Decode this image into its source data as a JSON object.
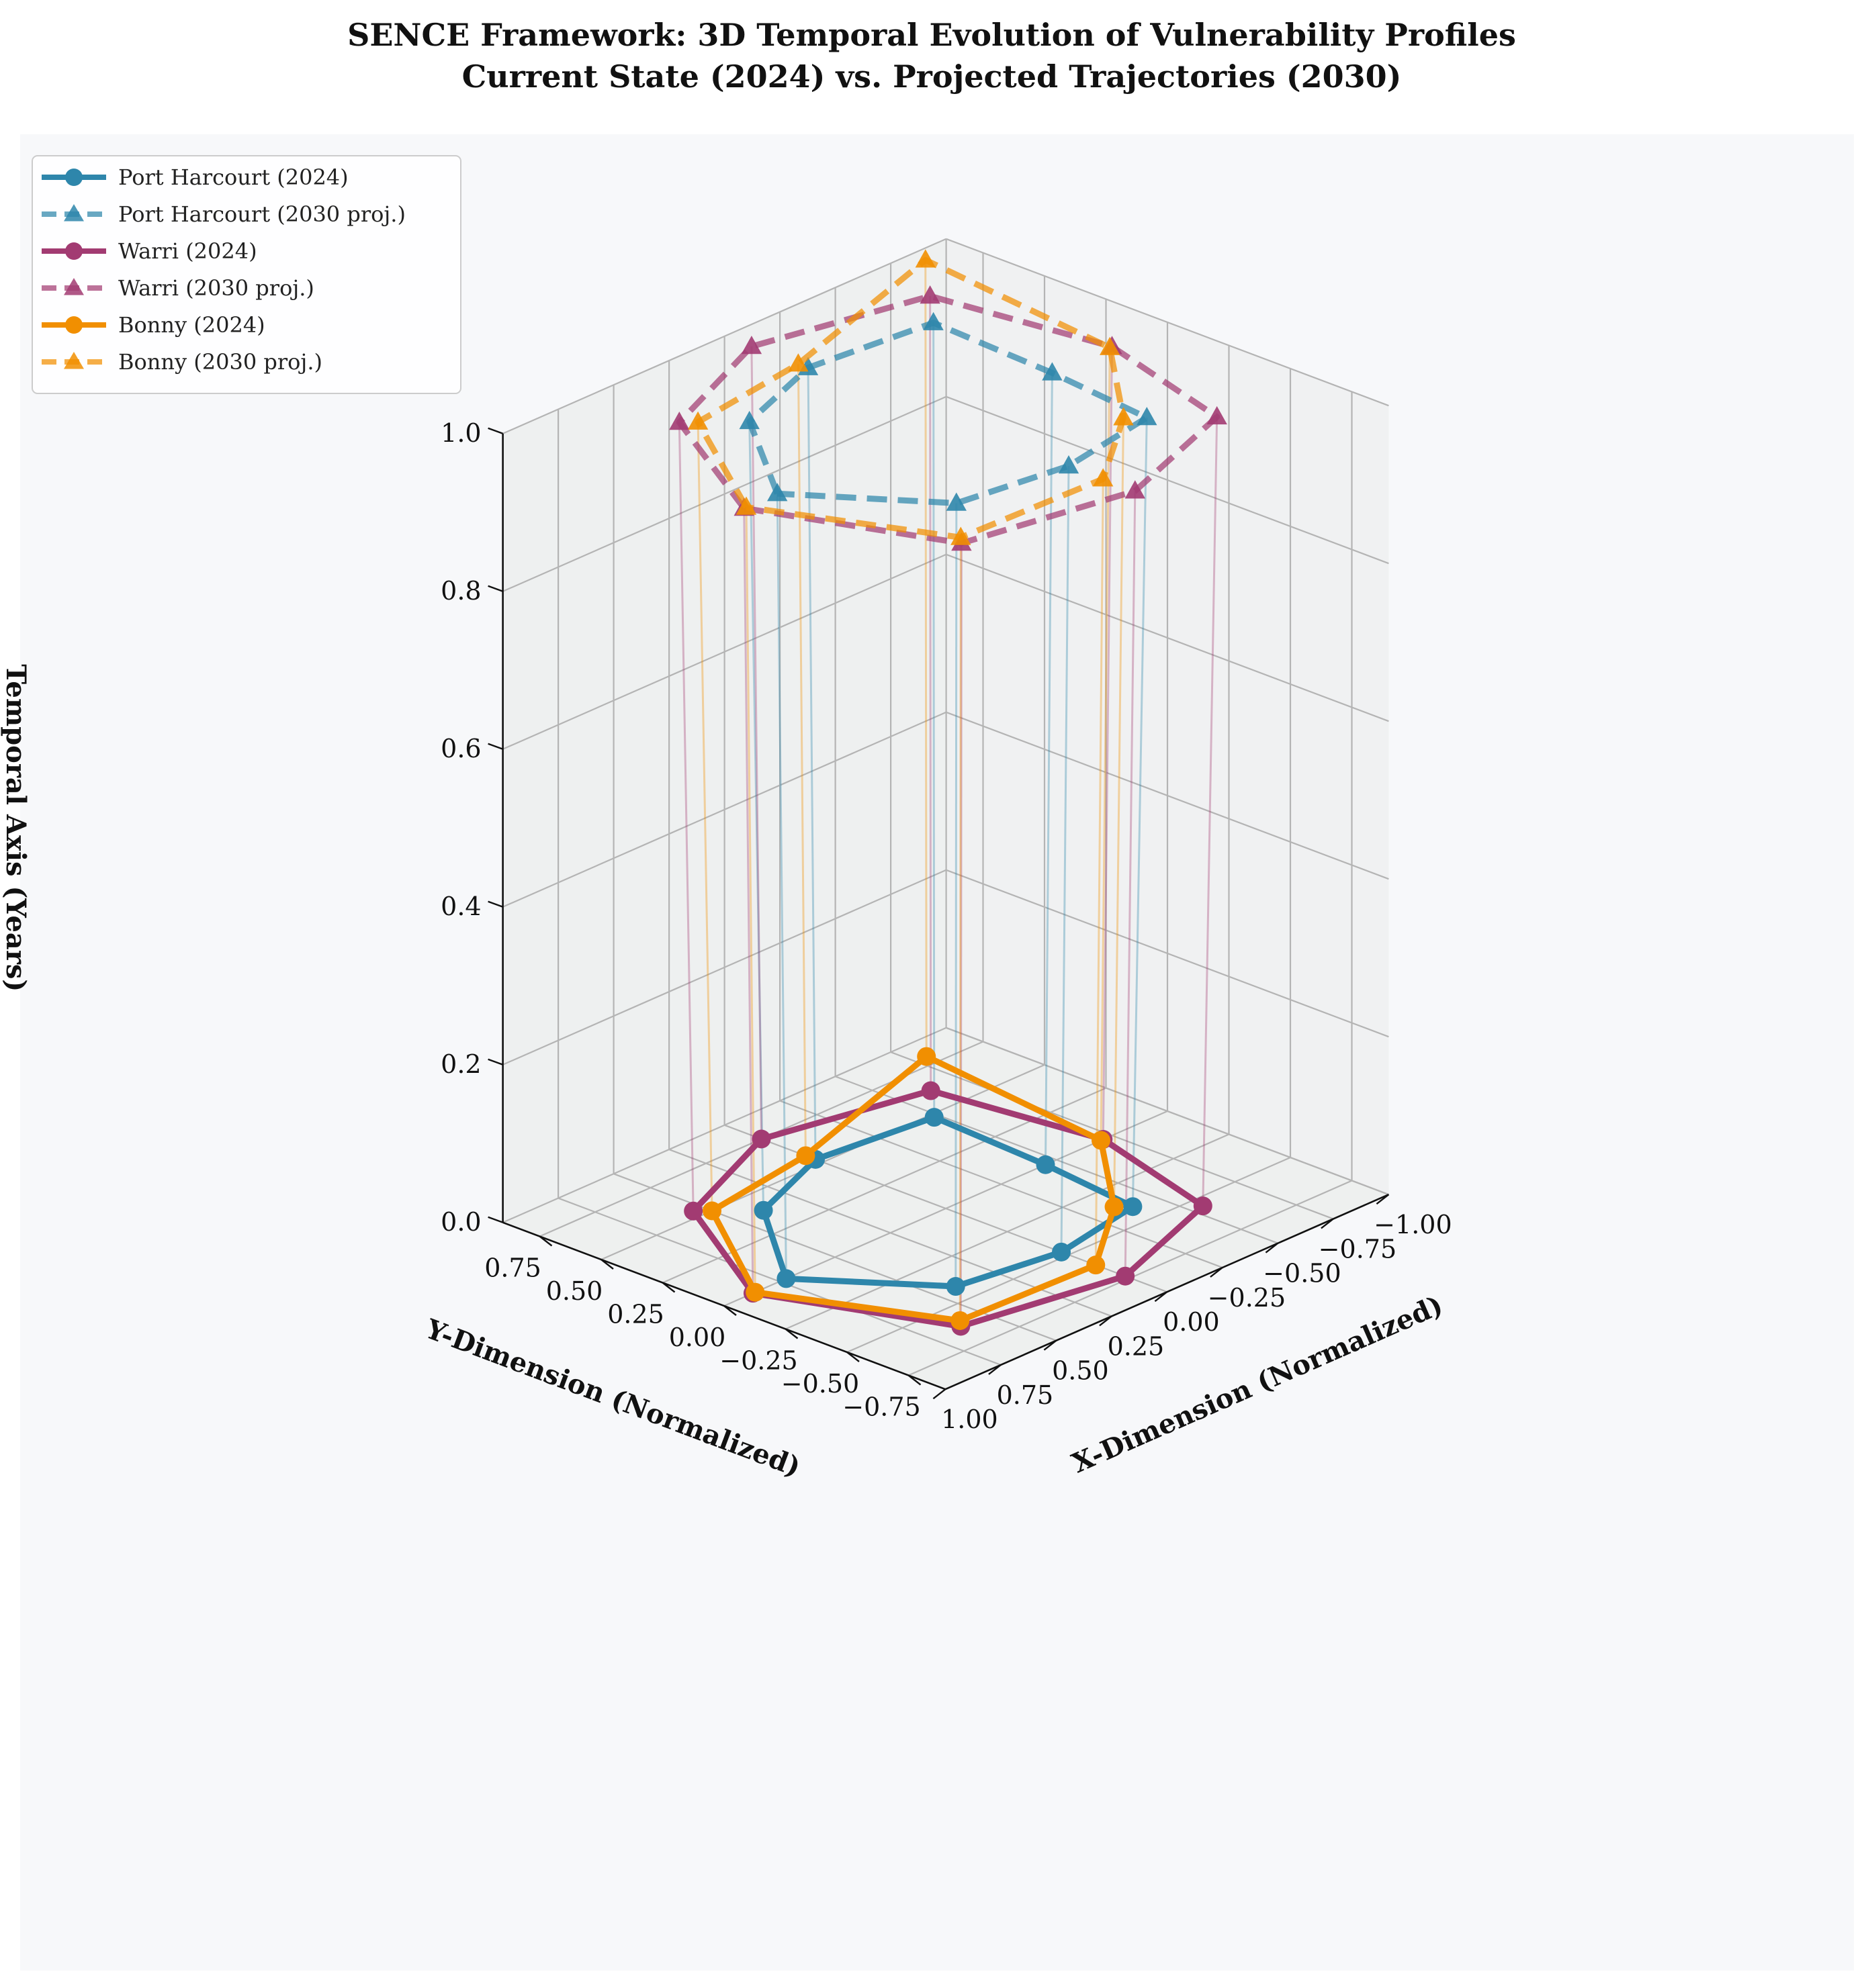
{
  "chart_data": {
    "type": "line3d",
    "title_line1": "SENCE Framework: 3D Temporal Evolution of Vulnerability Profiles",
    "title_line2": "Current State (2024) vs. Projected Trajectories (2030)",
    "xlabel": "X-Dimension (Normalized)",
    "ylabel": "Y-Dimension (Normalized)",
    "zlabel": "Temporal Axis (Years)",
    "xlim": [
      -1.0,
      1.0
    ],
    "ylim": [
      -0.9,
      0.9
    ],
    "zlim": [
      0.0,
      1.0
    ],
    "xticks": [
      "−1.00",
      "−0.75",
      "−0.50",
      "−0.25",
      "0.00",
      "0.25",
      "0.50",
      "0.75",
      "1.00"
    ],
    "xtick_values": [
      -1.0,
      -0.75,
      -0.5,
      -0.25,
      0.0,
      0.25,
      0.5,
      0.75,
      1.0
    ],
    "yticks": [
      "−0.75",
      "−0.50",
      "−0.25",
      "0.00",
      "0.25",
      "0.50",
      "0.75"
    ],
    "ytick_values": [
      -0.75,
      -0.5,
      -0.25,
      0.0,
      0.25,
      0.5,
      0.75
    ],
    "zticks": [
      "0.0",
      "0.2",
      "0.4",
      "0.6",
      "0.8",
      "1.0"
    ],
    "ztick_values": [
      0.0,
      0.2,
      0.4,
      0.6,
      0.8,
      1.0
    ],
    "legend_position": "top-left",
    "grid": true,
    "series": [
      {
        "name": "Port Harcourt (2024)",
        "color": "#2E86AB",
        "style": "solid",
        "marker": "circle",
        "z": 0.0,
        "points": [
          [
            0.72,
            0.0
          ],
          [
            0.39,
            0.39
          ],
          [
            0.0,
            0.53
          ],
          [
            -0.48,
            0.48
          ],
          [
            -0.45,
            0.0
          ],
          [
            -0.4,
            -0.4
          ],
          [
            0.0,
            -0.47
          ],
          [
            0.41,
            -0.41
          ]
        ]
      },
      {
        "name": "Port Harcourt (2030 proj.)",
        "color": "#2E86AB",
        "style": "dashed",
        "marker": "triangle",
        "z": 1.0,
        "points": [
          [
            0.76,
            0.0
          ],
          [
            0.42,
            0.42
          ],
          [
            0.0,
            0.56
          ],
          [
            -0.51,
            0.51
          ],
          [
            -0.48,
            0.0
          ],
          [
            -0.43,
            -0.43
          ],
          [
            0.0,
            -0.5
          ],
          [
            0.44,
            -0.44
          ]
        ]
      },
      {
        "name": "Warri (2024)",
        "color": "#A23B72",
        "style": "solid",
        "marker": "circle",
        "z": 0.0,
        "points": [
          [
            0.87,
            0.0
          ],
          [
            0.54,
            0.54
          ],
          [
            0.0,
            0.75
          ],
          [
            -0.62,
            0.62
          ],
          [
            -0.71,
            0.0
          ],
          [
            -0.55,
            -0.55
          ],
          [
            0.0,
            -0.73
          ],
          [
            0.62,
            -0.62
          ]
        ]
      },
      {
        "name": "Warri (2030 proj.)",
        "color": "#A23B72",
        "style": "dashed",
        "marker": "triangle",
        "z": 1.0,
        "points": [
          [
            0.91,
            0.0
          ],
          [
            0.57,
            0.57
          ],
          [
            0.0,
            0.79
          ],
          [
            -0.65,
            0.65
          ],
          [
            -0.75,
            0.0
          ],
          [
            -0.58,
            -0.58
          ],
          [
            0.0,
            -0.77
          ],
          [
            0.65,
            -0.65
          ]
        ]
      },
      {
        "name": "Bonny (2024)",
        "color": "#F18F01",
        "style": "solid",
        "marker": "circle",
        "z": 0.0,
        "points": [
          [
            0.86,
            0.0
          ],
          [
            0.5,
            0.5
          ],
          [
            0.0,
            0.57
          ],
          [
            -0.8,
            0.8
          ],
          [
            -0.7,
            0.0
          ],
          [
            -0.36,
            -0.36
          ],
          [
            0.0,
            -0.61
          ],
          [
            0.59,
            -0.59
          ]
        ]
      },
      {
        "name": "Bonny (2030 proj.)",
        "color": "#F18F01",
        "style": "dashed",
        "marker": "triangle",
        "z": 1.0,
        "points": [
          [
            0.9,
            0.0
          ],
          [
            0.53,
            0.53
          ],
          [
            0.0,
            0.6
          ],
          [
            -0.84,
            0.84
          ],
          [
            -0.74,
            0.0
          ],
          [
            -0.38,
            -0.38
          ],
          [
            0.0,
            -0.64
          ],
          [
            0.62,
            -0.62
          ]
        ]
      }
    ]
  }
}
